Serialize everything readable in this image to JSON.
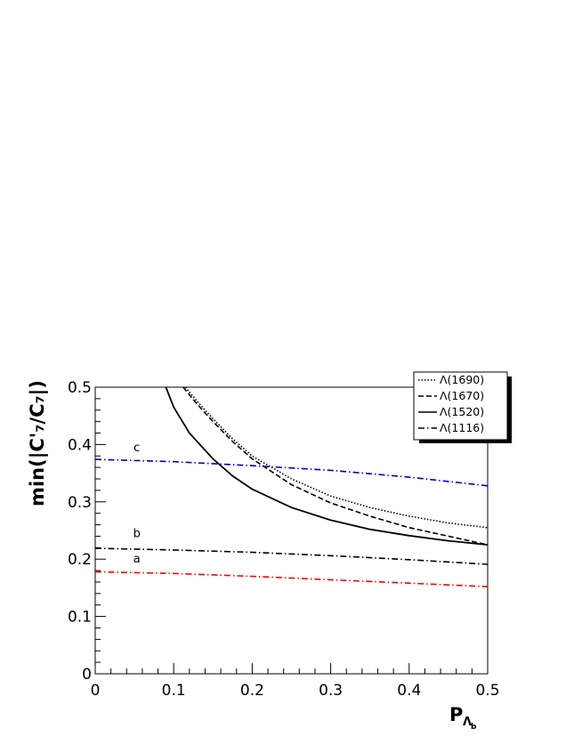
{
  "chart_data": {
    "type": "line",
    "xlabel_main": "P",
    "xlabel_sub": "Λ",
    "xlabel_subsub": "b",
    "ylabel": "min(|C'₇/C₇|)",
    "xlim": [
      0,
      0.5
    ],
    "ylim": [
      0,
      0.5
    ],
    "x_ticks": [
      "0",
      "0.1",
      "0.2",
      "0.3",
      "0.4",
      "0.5"
    ],
    "y_ticks": [
      "0",
      "0.1",
      "0.2",
      "0.3",
      "0.4",
      "0.5"
    ],
    "grid": false,
    "legend_position": "top-right",
    "series": [
      {
        "name": "Λ(1690)",
        "style": "dotted",
        "color": "#000000",
        "x": [
          0.115,
          0.13,
          0.15,
          0.175,
          0.2,
          0.25,
          0.3,
          0.35,
          0.4,
          0.45,
          0.5
        ],
        "y": [
          0.5,
          0.475,
          0.445,
          0.41,
          0.38,
          0.34,
          0.31,
          0.29,
          0.275,
          0.263,
          0.255
        ]
      },
      {
        "name": "Λ(1670)",
        "style": "dashed",
        "color": "#000000",
        "x": [
          0.112,
          0.13,
          0.15,
          0.175,
          0.2,
          0.25,
          0.3,
          0.35,
          0.4,
          0.45,
          0.5
        ],
        "y": [
          0.5,
          0.47,
          0.44,
          0.405,
          0.375,
          0.33,
          0.298,
          0.275,
          0.255,
          0.24,
          0.225
        ]
      },
      {
        "name": "Λ(1520)",
        "style": "solid",
        "color": "#000000",
        "x": [
          0.09,
          0.1,
          0.12,
          0.15,
          0.175,
          0.2,
          0.25,
          0.3,
          0.35,
          0.4,
          0.45,
          0.5
        ],
        "y": [
          0.5,
          0.465,
          0.42,
          0.375,
          0.345,
          0.322,
          0.29,
          0.268,
          0.252,
          0.241,
          0.232,
          0.225
        ]
      },
      {
        "name": "Λ(1116)",
        "label": "c",
        "style": "dashdot",
        "color": "#0000cc",
        "x": [
          0,
          0.1,
          0.2,
          0.3,
          0.4,
          0.5
        ],
        "y": [
          0.374,
          0.37,
          0.363,
          0.355,
          0.343,
          0.328
        ]
      },
      {
        "name": "Λ(1116)",
        "label": "b",
        "style": "dashdot",
        "color": "#000000",
        "x": [
          0,
          0.1,
          0.2,
          0.3,
          0.4,
          0.5
        ],
        "y": [
          0.219,
          0.216,
          0.212,
          0.206,
          0.199,
          0.191
        ]
      },
      {
        "name": "Λ(1116)",
        "label": "a",
        "style": "dashdot",
        "color": "#ff0000",
        "x": [
          0,
          0.1,
          0.2,
          0.3,
          0.4,
          0.5
        ],
        "y": [
          0.178,
          0.175,
          0.17,
          0.164,
          0.158,
          0.152
        ]
      }
    ],
    "legend_entries": [
      {
        "label": "Λ(1690)",
        "style": "dotted"
      },
      {
        "label": "Λ(1670)",
        "style": "dashed"
      },
      {
        "label": "Λ(1520)",
        "style": "solid"
      },
      {
        "label": "Λ(1116)",
        "style": "dashdot"
      }
    ],
    "curve_tags": [
      {
        "text": "c",
        "x": 0.053,
        "y": 0.388
      },
      {
        "text": "b",
        "x": 0.053,
        "y": 0.238
      },
      {
        "text": "a",
        "x": 0.053,
        "y": 0.194
      }
    ]
  }
}
